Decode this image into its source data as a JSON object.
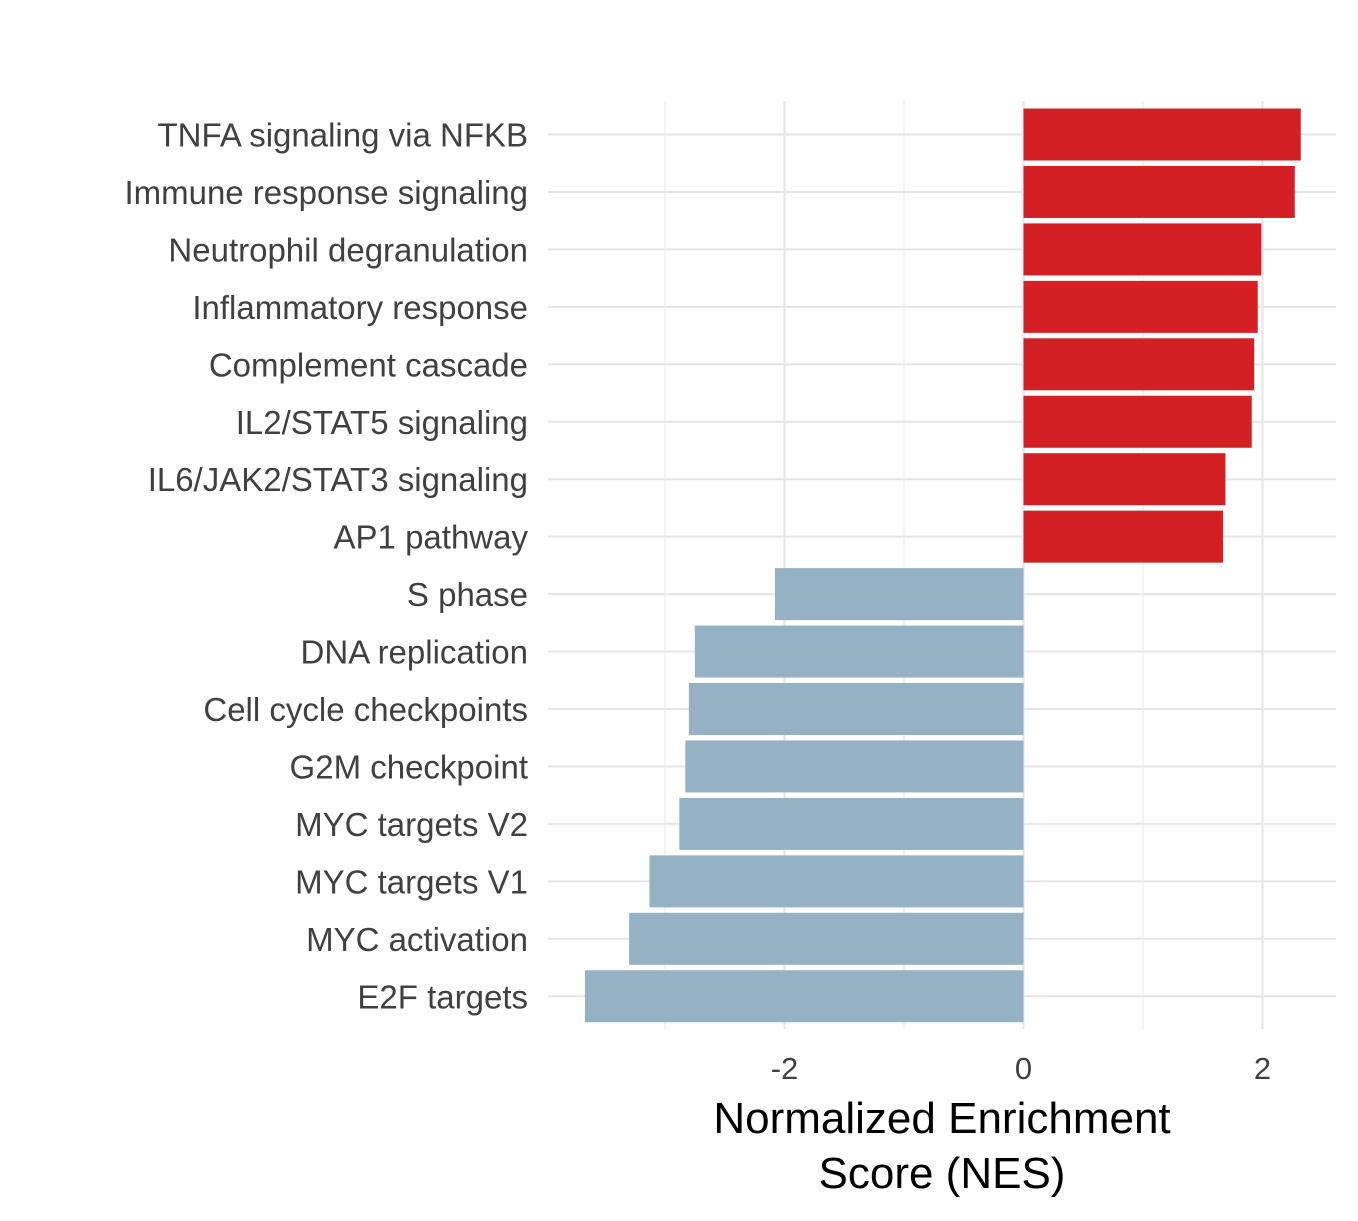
{
  "chart_data": {
    "type": "bar",
    "orientation": "horizontal",
    "xlabel_lines": [
      "Normalized Enrichment",
      "Score (NES)"
    ],
    "ylabel": "",
    "xlim": [
      -3.9,
      2.6
    ],
    "x_ticks": [
      -2,
      0,
      2
    ],
    "x_tick_labels": [
      "-2",
      "0",
      "2"
    ],
    "grid": true,
    "legend": "none",
    "colors": {
      "positive": "#d41f24",
      "negative": "#95b1c4"
    },
    "categories": [
      "TNFA signaling via NFKB",
      "Immune response signaling",
      "Neutrophil degranulation",
      "Inflammatory response",
      "Complement cascade",
      "IL2/STAT5 signaling",
      "IL6/JAK2/STAT3 signaling",
      "AP1 pathway",
      "S phase",
      "DNA replication",
      "Cell cycle checkpoints",
      "G2M checkpoint",
      "MYC targets V2",
      "MYC targets V1",
      "MYC activation",
      "E2F targets"
    ],
    "values": [
      2.32,
      2.27,
      1.99,
      1.96,
      1.93,
      1.91,
      1.69,
      1.67,
      -2.08,
      -2.75,
      -2.8,
      -2.83,
      -2.88,
      -3.13,
      -3.3,
      -3.67
    ]
  }
}
